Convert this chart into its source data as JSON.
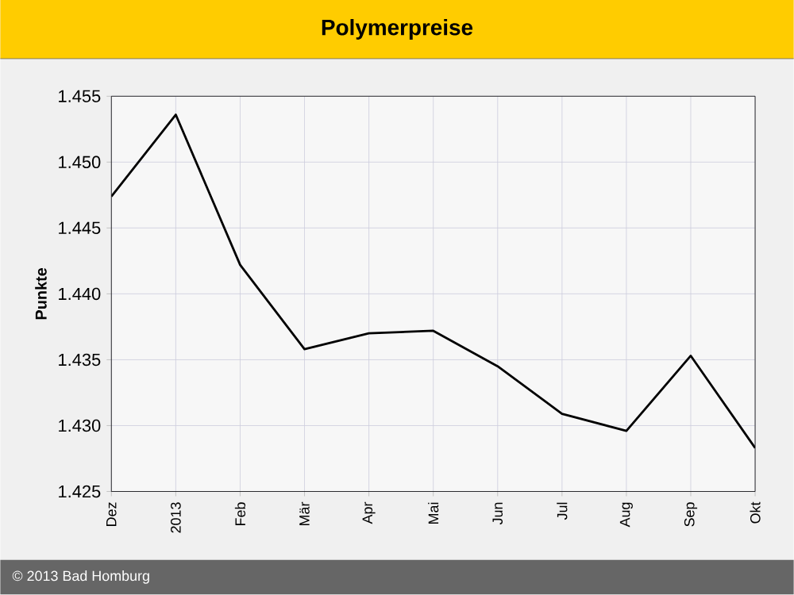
{
  "chart_data": {
    "type": "line",
    "title": "Polymerpreise",
    "ylabel": "Punkte",
    "categories": [
      "Dez",
      "2013",
      "Feb",
      "Mär",
      "Apr",
      "Mai",
      "Jun",
      "Jul",
      "Aug",
      "Sep",
      "Okt"
    ],
    "series": [
      {
        "color": "#000000",
        "values": [
          1447.4,
          1453.6,
          1442.2,
          1435.8,
          1437.0,
          1437.2,
          1434.5,
          1430.9,
          1429.6,
          1435.3,
          1428.3
        ]
      }
    ],
    "ylim": [
      1425,
      1455
    ],
    "yticks": [
      {
        "value": 1425,
        "label": "1.425"
      },
      {
        "value": 1430,
        "label": "1.430"
      },
      {
        "value": 1435,
        "label": "1.435"
      },
      {
        "value": 1440,
        "label": "1.440"
      },
      {
        "value": 1445,
        "label": "1.445"
      },
      {
        "value": 1450,
        "label": "1.450"
      },
      {
        "value": 1455,
        "label": "1.455"
      }
    ],
    "grid": true,
    "line_style": "solid",
    "marker": "none",
    "annotations": [
      "© 2013 Bad Homburg"
    ]
  }
}
